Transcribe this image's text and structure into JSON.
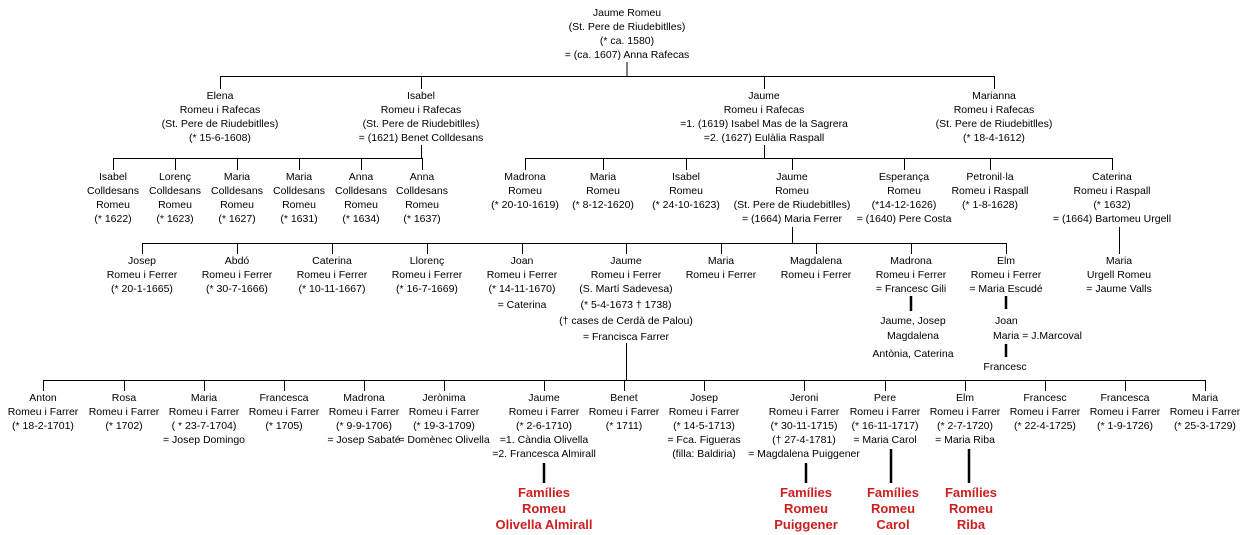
{
  "colors": {
    "line": "#000000",
    "text": "#000000",
    "highlight": "#cc1f1f"
  },
  "root": {
    "name": "Jaume Romeu",
    "place": "(St. Pere de Riudebitlles)",
    "born": "(* ca. 1580)",
    "spouse": "= (ca. 1607) Anna Rafecas"
  },
  "gen1": [
    {
      "lines": [
        "Elena",
        "Romeu i Rafecas",
        "(St. Pere de Riudebitlles)",
        "(* 15-6-1608)"
      ]
    },
    {
      "lines": [
        "Isabel",
        "Romeu i Rafecas",
        "(St. Pere de Riudebitlles)",
        "= (1621) Benet Colldesans"
      ]
    },
    {
      "lines": [
        "Jaume",
        "Romeu i Rafecas",
        "=1. (1619) Isabel Mas de la Sagrera",
        "=2. (1627) Eulàlia Raspall"
      ]
    },
    {
      "lines": [
        "Marianna",
        "Romeu i Rafecas",
        "(St. Pere de Riudebitlles)",
        "(* 18-4-1612)"
      ]
    }
  ],
  "gen2": [
    {
      "lines": [
        "Isabel",
        "Colldesans",
        "Romeu",
        "(* 1622)"
      ]
    },
    {
      "lines": [
        "Lorenç",
        "Colldesans",
        "Romeu",
        "(* 1623)"
      ]
    },
    {
      "lines": [
        "Maria",
        "Colldesans",
        "Romeu",
        "(* 1627)"
      ]
    },
    {
      "lines": [
        "Maria",
        "Colldesans",
        "Romeu",
        "(* 1631)"
      ]
    },
    {
      "lines": [
        "Anna",
        "Colldesans",
        "Romeu",
        "(* 1634)"
      ]
    },
    {
      "lines": [
        "Anna",
        "Colldesans",
        "Romeu",
        "(* 1637)"
      ]
    },
    {
      "lines": [
        "Madrona",
        "Romeu",
        "(* 20-10-1619)"
      ]
    },
    {
      "lines": [
        "Maria",
        "Romeu",
        "(* 8-12-1620)"
      ]
    },
    {
      "lines": [
        "Isabel",
        "Romeu",
        "(* 24-10-1623)"
      ]
    },
    {
      "lines": [
        "Jaume",
        "Romeu",
        "(St. Pere de Riudebitlles)",
        "= (1664) Maria Ferrer"
      ]
    },
    {
      "lines": [
        "Esperança",
        "Romeu",
        "(*14-12-1626)",
        "= (1640) Pere Costa"
      ]
    },
    {
      "lines": [
        "Petronil·la",
        "Romeu i Raspall",
        "(* 1-8-1628)"
      ]
    },
    {
      "lines": [
        "Caterina",
        "Romeu i Raspall",
        "(* 1632)",
        "= (1664) Bartomeu Urgell"
      ]
    }
  ],
  "gen3": [
    {
      "lines": [
        "Josep",
        "Romeu i Ferrer",
        "(* 20-1-1665)"
      ]
    },
    {
      "lines": [
        "Abdó",
        "Romeu i Ferrer",
        "(* 30-7-1666)"
      ]
    },
    {
      "lines": [
        "Caterina",
        "Romeu i Ferrer",
        "(* 10-11-1667)"
      ]
    },
    {
      "lines": [
        "Llorenç",
        "Romeu i Ferrer",
        "(* 16-7-1669)"
      ]
    },
    {
      "lines": [
        "Joan",
        "Romeu i Ferrer",
        "(* 14-11-1670)",
        "= Caterina"
      ]
    },
    {
      "lines": [
        "Jaume",
        "Romeu i Ferrer",
        "(S. Martí Sadevesa)",
        "(* 5-4-1673 † 1738)",
        "(† cases de Cerdà de Palou)",
        "= Francisca Farrer"
      ]
    },
    {
      "lines": [
        "Maria",
        "Romeu i Ferrer"
      ]
    },
    {
      "lines": [
        "Magdalena",
        "Romeu i Ferrer"
      ]
    },
    {
      "lines": [
        "Madrona",
        "Romeu i Ferrer",
        "= Francesc Gili"
      ]
    },
    {
      "lines": [
        "Elm",
        "Romeu i Ferrer",
        "= Maria Escudé"
      ]
    },
    {
      "lines": [
        "Maria",
        "Urgell Romeu",
        "= Jaume Valls"
      ]
    }
  ],
  "gili_children": [
    "Jaume, Josep",
    "Magdalena",
    "Antònia, Caterina"
  ],
  "escude_child": [
    "Joan",
    "Maria = J.Marcoval"
  ],
  "marcoval_child": "Francesc",
  "gen4": [
    {
      "lines": [
        "Anton",
        "Romeu i Farrer",
        "(* 18-2-1701)"
      ]
    },
    {
      "lines": [
        "Rosa",
        "Romeu i Farrer",
        "(* 1702)"
      ]
    },
    {
      "lines": [
        "Maria",
        "Romeu i Farrer",
        "( * 23-7-1704)",
        "= Josep Domingo"
      ]
    },
    {
      "lines": [
        "Francesca",
        "Romeu i Farrer",
        "(* 1705)"
      ]
    },
    {
      "lines": [
        "Madrona",
        "Romeu i Farrer",
        "(* 9-9-1706)",
        "= Josep Sabaté"
      ]
    },
    {
      "lines": [
        "Jerònima",
        "Romeu i Farrer",
        "(* 19-3-1709)",
        "= Domènec Olivella"
      ]
    },
    {
      "lines": [
        "Jaume",
        "Romeu i Farrer",
        "(* 2-6-1710)",
        "=1. Càndia Olivella",
        "=2. Francesca Almirall"
      ]
    },
    {
      "lines": [
        "Benet",
        "Romeu i Farrer",
        "(* 1711)"
      ]
    },
    {
      "lines": [
        "Josep",
        "Romeu i Farrer",
        "(* 14-5-1713)",
        "= Fca. Figueras",
        "(filla: Baldiria)"
      ]
    },
    {
      "lines": [
        "Jeroni",
        "Romeu i Farrer",
        "(* 30-11-1715)",
        "(† 27-4-1781)",
        "= Magdalena Puiggener"
      ]
    },
    {
      "lines": [
        "Pere",
        "Romeu i Farrer",
        "(* 16-11-1717)",
        "= Maria Carol"
      ]
    },
    {
      "lines": [
        "Elm",
        "Romeu i Farrer",
        "(* 2-7-1720)",
        "= Maria Riba"
      ]
    },
    {
      "lines": [
        "Francesc",
        "Romeu i Farrer",
        "(* 22-4-1725)"
      ]
    },
    {
      "lines": [
        "Francesca",
        "Romeu i Farrer",
        "(* 1-9-1726)"
      ]
    },
    {
      "lines": [
        "Maria",
        "Romeu i Farrer",
        "(* 25-3-1729)"
      ]
    }
  ],
  "families": [
    {
      "lines": [
        "Famílies",
        "Romeu",
        "Olivella Almirall"
      ]
    },
    {
      "lines": [
        "Famílies",
        "Romeu",
        "Puiggener"
      ]
    },
    {
      "lines": [
        "Famílies",
        "Romeu",
        "Carol"
      ]
    },
    {
      "lines": [
        "Famílies",
        "Romeu",
        "Riba"
      ]
    }
  ]
}
